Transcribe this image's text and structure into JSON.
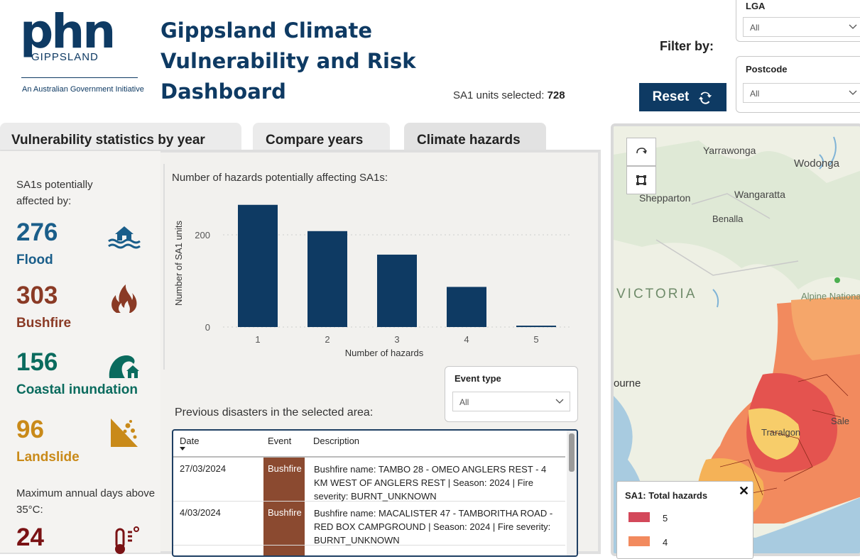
{
  "logo": {
    "phn": "phn",
    "region": "GIPPSLAND",
    "tagline": "An Australian Government Initiative"
  },
  "header": {
    "title": "Gippsland Climate Vulnerability and Risk Dashboard",
    "sa1_label": "SA1 units selected:",
    "sa1_value": "728"
  },
  "filters": {
    "label": "Filter by:",
    "reset": "Reset",
    "lga": {
      "title": "LGA",
      "value": "All"
    },
    "postcode": {
      "title": "Postcode",
      "value": "All"
    }
  },
  "tabs": [
    {
      "label": "Vulnerability statistics by year"
    },
    {
      "label": "Compare years"
    },
    {
      "label": "Climate hazards"
    }
  ],
  "stats": {
    "intro": "SA1s potentially affected by:",
    "flood": {
      "value": "276",
      "label": "Flood"
    },
    "bushfire": {
      "value": "303",
      "label": "Bushfire"
    },
    "coastal": {
      "value": "156",
      "label": "Coastal inundation"
    },
    "landslide": {
      "value": "96",
      "label": "Landslide"
    },
    "max_days_label": "Maximum annual days above 35°C:",
    "max_days_value": "24"
  },
  "chart_title": "Number of hazards potentially affecting SA1s:",
  "chart_data": {
    "type": "bar",
    "categories": [
      "1",
      "2",
      "3",
      "4",
      "5"
    ],
    "values": [
      265,
      208,
      157,
      87,
      3
    ],
    "xlabel": "Number of hazards",
    "ylabel": "Number of SA1 units",
    "yticks": [
      "0",
      "200"
    ],
    "ylim": [
      0,
      280
    ],
    "color": "#0e3a63",
    "grid": true
  },
  "event_filter": {
    "title": "Event type",
    "value": "All"
  },
  "disasters": {
    "title": "Previous disasters in the selected area:",
    "columns": [
      "Date",
      "Event",
      "Description"
    ],
    "rows": [
      {
        "date": "27/03/2024",
        "event": "Bushfire",
        "desc": "Bushfire name: TAMBO 28 - OMEO ANGLERS REST - 4 KM WEST OF ANGLERS REST | Season: 2024 | Fire severity: BURNT_UNKNOWN"
      },
      {
        "date": "4/03/2024",
        "event": "Bushfire",
        "desc": "Bushfire name: MACALISTER 47 - TAMBORITHA ROAD - RED BOX CAMPGROUND | Season: 2024 | Fire severity: BURNT_UNKNOWN"
      }
    ]
  },
  "map": {
    "labels": [
      "Yarrawonga",
      "Wodonga",
      "Shepparton",
      "Wangaratta",
      "Benalla",
      "VICTORIA",
      "Alpine Nationa",
      "ourne",
      "Traralgon",
      "Sale"
    ],
    "legend_title": "SA1: Total hazards",
    "legend_close": "✕",
    "legend": [
      {
        "value": "5",
        "color": "#d3485a"
      },
      {
        "value": "4",
        "color": "#f28a5e"
      }
    ]
  }
}
